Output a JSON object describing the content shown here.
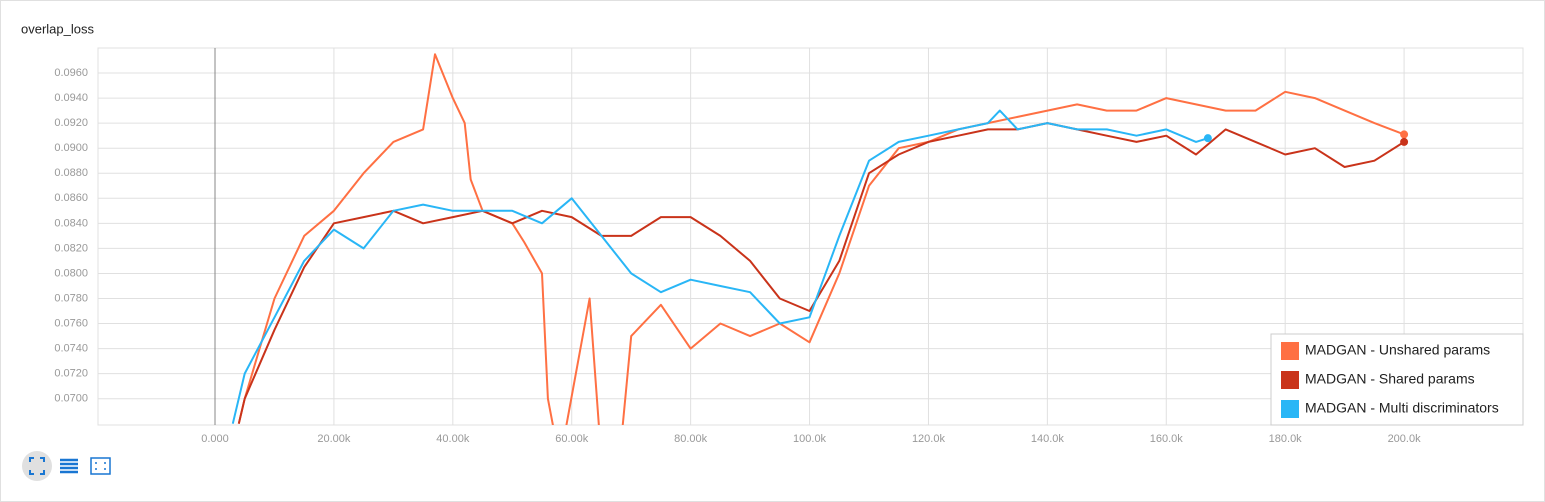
{
  "chart_data": {
    "type": "line",
    "title": "overlap_loss",
    "xlim": [
      -19680,
      220000
    ],
    "ylim": [
      0.0679,
      0.098
    ],
    "xticks": [
      {
        "value": 0,
        "label": "0.000"
      },
      {
        "value": 20000,
        "label": "20.00k"
      },
      {
        "value": 40000,
        "label": "40.00k"
      },
      {
        "value": 60000,
        "label": "60.00k"
      },
      {
        "value": 80000,
        "label": "80.00k"
      },
      {
        "value": 100000,
        "label": "100.0k"
      },
      {
        "value": 120000,
        "label": "120.0k"
      },
      {
        "value": 140000,
        "label": "140.0k"
      },
      {
        "value": 160000,
        "label": "160.0k"
      },
      {
        "value": 180000,
        "label": "180.0k"
      },
      {
        "value": 200000,
        "label": "200.0k"
      }
    ],
    "yticks": [
      {
        "value": 0.07,
        "label": "0.0700"
      },
      {
        "value": 0.072,
        "label": "0.0720"
      },
      {
        "value": 0.074,
        "label": "0.0740"
      },
      {
        "value": 0.076,
        "label": "0.0760"
      },
      {
        "value": 0.078,
        "label": "0.0780"
      },
      {
        "value": 0.08,
        "label": "0.0800"
      },
      {
        "value": 0.082,
        "label": "0.0820"
      },
      {
        "value": 0.084,
        "label": "0.0840"
      },
      {
        "value": 0.086,
        "label": "0.0860"
      },
      {
        "value": 0.088,
        "label": "0.0880"
      },
      {
        "value": 0.09,
        "label": "0.0900"
      },
      {
        "value": 0.092,
        "label": "0.0920"
      },
      {
        "value": 0.094,
        "label": "0.0940"
      },
      {
        "value": 0.096,
        "label": "0.0960"
      }
    ],
    "grid": true,
    "legend": "lower right",
    "series": [
      {
        "name": "MADGAN - Unshared params",
        "color": "#ff7043",
        "x": [
          4000,
          5000,
          10000,
          15000,
          20000,
          25000,
          30000,
          35000,
          37000,
          40000,
          42000,
          43000,
          45000,
          50000,
          52000,
          55000,
          56000,
          58000,
          63000,
          65000,
          68000,
          70000,
          75000,
          80000,
          85000,
          90000,
          95000,
          100000,
          105000,
          110000,
          115000,
          120000,
          125000,
          130000,
          135000,
          140000,
          145000,
          150000,
          155000,
          160000,
          165000,
          170000,
          175000,
          180000,
          185000,
          190000,
          195000,
          200000
        ],
        "values": [
          0.068,
          0.07,
          0.078,
          0.083,
          0.085,
          0.088,
          0.0905,
          0.0915,
          0.0975,
          0.094,
          0.092,
          0.0875,
          0.085,
          0.084,
          0.0825,
          0.08,
          0.07,
          0.065,
          0.078,
          0.065,
          0.065,
          0.075,
          0.0775,
          0.074,
          0.076,
          0.075,
          0.076,
          0.0745,
          0.08,
          0.087,
          0.09,
          0.0905,
          0.0915,
          0.092,
          0.0925,
          0.093,
          0.0935,
          0.093,
          0.093,
          0.094,
          0.0935,
          0.093,
          0.093,
          0.0945,
          0.094,
          0.093,
          0.092,
          0.0911
        ]
      },
      {
        "name": "MADGAN - Shared params",
        "color": "#c9331a",
        "x": [
          4000,
          5000,
          10000,
          15000,
          20000,
          25000,
          30000,
          35000,
          40000,
          45000,
          50000,
          55000,
          60000,
          65000,
          70000,
          75000,
          80000,
          85000,
          90000,
          95000,
          100000,
          105000,
          110000,
          115000,
          120000,
          125000,
          130000,
          135000,
          140000,
          145000,
          150000,
          155000,
          160000,
          165000,
          170000,
          175000,
          180000,
          185000,
          190000,
          195000,
          200000
        ],
        "values": [
          0.068,
          0.07,
          0.0755,
          0.0805,
          0.084,
          0.0845,
          0.085,
          0.084,
          0.0845,
          0.085,
          0.084,
          0.085,
          0.0845,
          0.083,
          0.083,
          0.0845,
          0.0845,
          0.083,
          0.081,
          0.078,
          0.077,
          0.081,
          0.088,
          0.0895,
          0.0905,
          0.091,
          0.0915,
          0.0915,
          0.092,
          0.0915,
          0.091,
          0.0905,
          0.091,
          0.0895,
          0.0915,
          0.0905,
          0.0895,
          0.09,
          0.0885,
          0.089,
          0.0905
        ]
      },
      {
        "name": "MADGAN - Multi discriminators",
        "color": "#29b6f6",
        "x": [
          3000,
          5000,
          10000,
          15000,
          20000,
          25000,
          30000,
          35000,
          40000,
          45000,
          50000,
          55000,
          60000,
          65000,
          70000,
          75000,
          80000,
          85000,
          90000,
          95000,
          100000,
          105000,
          110000,
          115000,
          120000,
          125000,
          130000,
          132000,
          135000,
          140000,
          145000,
          150000,
          155000,
          160000,
          165000,
          167000
        ],
        "values": [
          0.068,
          0.072,
          0.0765,
          0.081,
          0.0835,
          0.082,
          0.085,
          0.0855,
          0.085,
          0.085,
          0.085,
          0.084,
          0.086,
          0.083,
          0.08,
          0.0785,
          0.0795,
          0.079,
          0.0785,
          0.076,
          0.0765,
          0.083,
          0.089,
          0.0905,
          0.091,
          0.0915,
          0.092,
          0.093,
          0.0915,
          0.092,
          0.0915,
          0.0915,
          0.091,
          0.0915,
          0.0905,
          0.0908
        ]
      }
    ]
  }
}
